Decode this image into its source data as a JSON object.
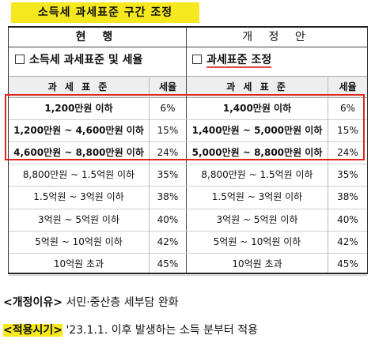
{
  "title": "소득세 과세표준 구간 조정",
  "columns": {
    "current": "현 행",
    "proposed": "개 정 안"
  },
  "sub_heads": {
    "current": "소득세 과세표준 및 세율",
    "proposed": "과세표준 조정"
  },
  "table_headers": {
    "bracket": "과 세 표 준",
    "rate": "세율"
  },
  "rows": [
    {
      "current": "1,200만원 이하",
      "current_rate": "6%",
      "proposed": "1,400만원 이하",
      "proposed_rate": "6%"
    },
    {
      "current": "1,200만원 ~ 4,600만원 이하",
      "current_rate": "15%",
      "proposed": "1,400만원 ~ 5,000만원 이하",
      "proposed_rate": "15%"
    },
    {
      "current": "4,600만원 ~ 8,800만원 이하",
      "current_rate": "24%",
      "proposed": "5,000만원 ~ 8,800만원 이하",
      "proposed_rate": "24%"
    },
    {
      "current": "8,800만원 ~ 1.5억원 이하",
      "current_rate": "35%",
      "proposed": "8,800만원 ~ 1.5억원 이하",
      "proposed_rate": "35%"
    },
    {
      "current": "1.5억원 ~ 3억원 이하",
      "current_rate": "38%",
      "proposed": "1.5억원 ~ 3억원 이하",
      "proposed_rate": "38%"
    },
    {
      "current": "3억원 ~ 5억원 이하",
      "current_rate": "40%",
      "proposed": "3억원 ~ 5억원 이하",
      "proposed_rate": "40%"
    },
    {
      "current": "5억원 ~ 10억원 이하",
      "current_rate": "42%",
      "proposed": "5억원 ~ 10억원 이하",
      "proposed_rate": "42%"
    },
    {
      "current": "10억원 초과",
      "current_rate": "45%",
      "proposed": "10억원 초과",
      "proposed_rate": "45%"
    }
  ],
  "footer": {
    "reason_tag": "<개정이유>",
    "reason_text": "서민·중산층 세부담 완화",
    "timing_tag": "<적용시기>",
    "timing_text": "'23.1.1. 이후 발생하는 소득 분부터 적용"
  },
  "colors": {
    "highlight": "#f5e81e",
    "emphasis_frame": "#e0241f"
  }
}
